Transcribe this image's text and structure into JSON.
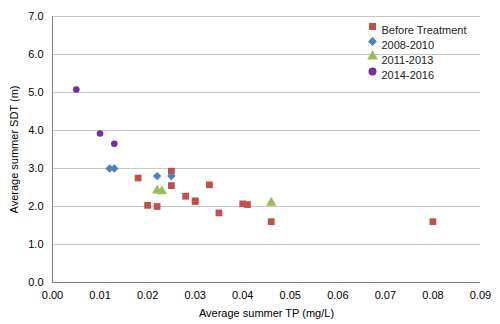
{
  "chart_data": {
    "type": "scatter",
    "xlabel": "Average summer TP (mg/L)",
    "ylabel": "Average summer SDT (m)",
    "series": [
      {
        "name": "Before Treatment",
        "color": "#C0504D",
        "marker": "square",
        "x": [
          0.018,
          0.02,
          0.022,
          0.025,
          0.025,
          0.028,
          0.03,
          0.03,
          0.033,
          0.035,
          0.04,
          0.041,
          0.046,
          0.08
        ],
        "values": [
          2.75,
          2.03,
          2.0,
          2.55,
          2.93,
          2.27,
          2.15,
          2.13,
          2.57,
          1.83,
          2.07,
          2.05,
          1.6,
          1.6
        ]
      },
      {
        "name": "2008-2010",
        "color": "#4F81BD",
        "marker": "diamond",
        "x": [
          0.012,
          0.013,
          0.022,
          0.025
        ],
        "values": [
          3.0,
          3.0,
          2.8,
          2.8
        ]
      },
      {
        "name": "2011-2013",
        "color": "#9BBB59",
        "marker": "triangle",
        "x": [
          0.022,
          0.023,
          0.046
        ],
        "values": [
          2.42,
          2.4,
          2.1
        ]
      },
      {
        "name": "2014-2016",
        "color": "#7030A0",
        "marker": "circle",
        "x": [
          0.005,
          0.01,
          0.013
        ],
        "values": [
          5.08,
          3.92,
          3.65
        ]
      }
    ],
    "xlim": [
      0.0,
      0.09
    ],
    "ylim": [
      0.0,
      7.0
    ],
    "xticks": [
      {
        "value": 0,
        "label": "0.00"
      },
      0.01,
      0.02,
      0.03,
      0.04,
      0.05,
      0.06,
      0.07,
      0.08,
      0.09
    ],
    "yticks": [
      {
        "value": 0,
        "label": "0.0"
      },
      {
        "value": 1,
        "label": "1.0"
      },
      {
        "value": 2,
        "label": "2.0"
      },
      {
        "value": 3,
        "label": "3.0"
      },
      {
        "value": 4,
        "label": "4.0"
      },
      {
        "value": 5,
        "label": "5.0"
      },
      {
        "value": 6,
        "label": "6.0"
      },
      {
        "value": 7,
        "label": "7.0"
      }
    ],
    "grid": "y",
    "legend": "upper right"
  }
}
